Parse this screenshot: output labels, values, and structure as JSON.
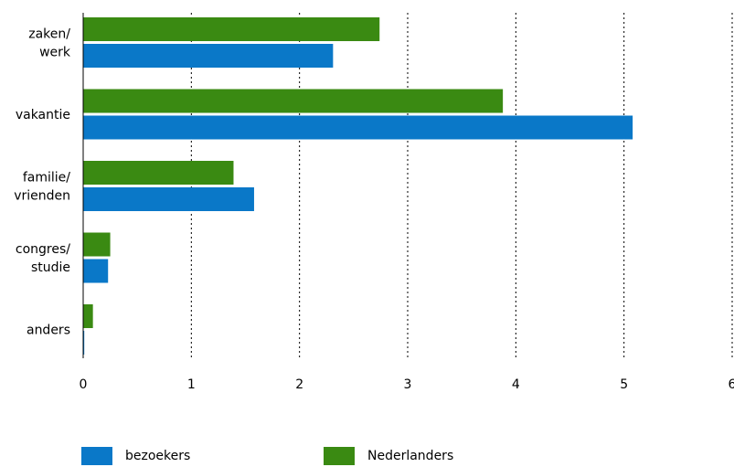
{
  "chart_data": {
    "type": "bar",
    "orientation": "horizontal",
    "categories": [
      [
        "zaken/",
        "werk"
      ],
      [
        "vakantie"
      ],
      [
        "familie/",
        "vrienden"
      ],
      [
        "congres/",
        "studie"
      ],
      [
        "anders"
      ]
    ],
    "series": [
      {
        "name": "Nederlanders",
        "color": "#3a8a12",
        "values": [
          2.74,
          3.88,
          1.39,
          0.25,
          0.09
        ]
      },
      {
        "name": "bezoekers",
        "color": "#0a78c8",
        "values": [
          2.31,
          5.08,
          1.58,
          0.23,
          0.01
        ]
      }
    ],
    "xlim": [
      0,
      6
    ],
    "xticks": [
      "0",
      "1",
      "2",
      "3",
      "4",
      "5",
      "6"
    ],
    "grid": "vertical dotted",
    "legend_position": "bottom"
  },
  "legend": [
    {
      "label": "bezoekers",
      "color": "#0a78c8"
    },
    {
      "label": "Nederlanders",
      "color": "#3a8a12"
    }
  ]
}
